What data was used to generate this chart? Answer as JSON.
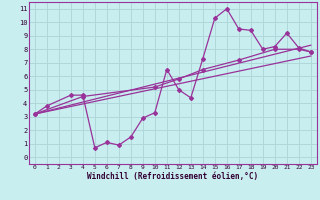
{
  "xlabel": "Windchill (Refroidissement éolien,°C)",
  "background_color": "#c8eef0",
  "grid_color": "#b0d8da",
  "line_color": "#993399",
  "xlim": [
    -0.5,
    23.5
  ],
  "ylim": [
    -0.5,
    11.5
  ],
  "xticks": [
    0,
    1,
    2,
    3,
    4,
    5,
    6,
    7,
    8,
    9,
    10,
    11,
    12,
    13,
    14,
    15,
    16,
    17,
    18,
    19,
    20,
    21,
    22,
    23
  ],
  "yticks": [
    0,
    1,
    2,
    3,
    4,
    5,
    6,
    7,
    8,
    9,
    10,
    11
  ],
  "zigzag_x": [
    0,
    1,
    3,
    4,
    5,
    6,
    7,
    8,
    9,
    10,
    11,
    12,
    13,
    14,
    15,
    16,
    17,
    18,
    19,
    20,
    21,
    22,
    23
  ],
  "zigzag_y": [
    3.2,
    3.8,
    4.6,
    4.6,
    0.7,
    1.1,
    0.9,
    1.5,
    2.9,
    3.3,
    6.5,
    5.0,
    4.4,
    7.3,
    10.3,
    11.0,
    9.5,
    9.4,
    8.0,
    8.2,
    9.2,
    8.1,
    7.8
  ],
  "upper_line_x": [
    0,
    23
  ],
  "upper_line_y": [
    3.2,
    8.3
  ],
  "lower_line_x": [
    0,
    23
  ],
  "lower_line_y": [
    3.2,
    7.5
  ],
  "smooth_x": [
    0,
    4,
    10,
    12,
    14,
    17,
    20,
    22,
    23
  ],
  "smooth_y": [
    3.2,
    4.5,
    5.2,
    5.8,
    6.5,
    7.2,
    8.0,
    8.0,
    7.8
  ]
}
